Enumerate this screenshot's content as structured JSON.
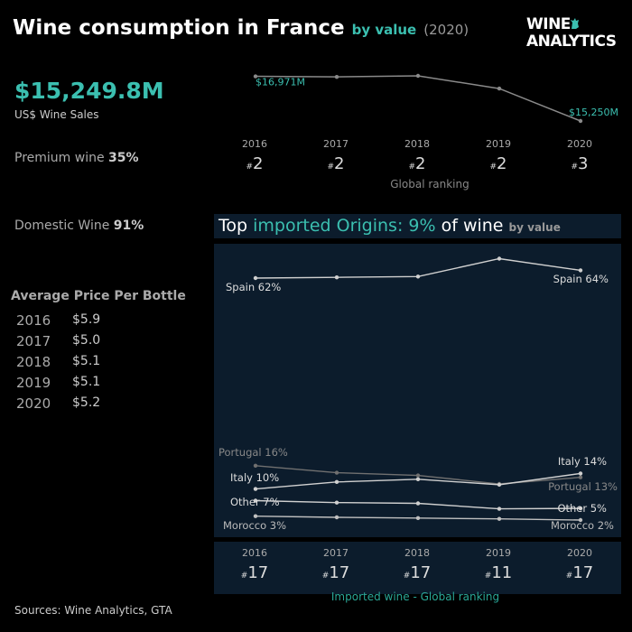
{
  "header": {
    "title": "Wine consumption in France",
    "by_value": "by value",
    "year": "(2020)"
  },
  "logo": {
    "line1": "WINE",
    "line2": "ANALYTICS"
  },
  "sales": {
    "value": "$15,249.8M",
    "label": "US$ Wine Sales"
  },
  "stats": {
    "premium_label": "Premium wine",
    "premium_value": "35%",
    "domestic_label": "Domestic Wine",
    "domestic_value": "91%"
  },
  "avg_price": {
    "title": "Average Price Per Bottle",
    "rows": [
      {
        "year": "2016",
        "price": "$5.9"
      },
      {
        "year": "2017",
        "price": "$5.0"
      },
      {
        "year": "2018",
        "price": "$5.1"
      },
      {
        "year": "2019",
        "price": "$5.1"
      },
      {
        "year": "2020",
        "price": "$5.2"
      }
    ]
  },
  "global_ranking": {
    "caption": "Global ranking",
    "hash": "#",
    "years": [
      "2016",
      "2017",
      "2018",
      "2019",
      "2020"
    ],
    "ranks": [
      "2",
      "2",
      "2",
      "2",
      "3"
    ]
  },
  "imported": {
    "title_pre": "Top",
    "title_hl": "imported Origins: 9%",
    "title_post": "of wine",
    "by_value": "by value",
    "ranking_caption": "Imported wine - Global ranking",
    "years": [
      "2016",
      "2017",
      "2018",
      "2019",
      "2020"
    ],
    "ranks": [
      "17",
      "17",
      "17",
      "11",
      "17"
    ]
  },
  "sources": "Sources: Wine Analytics, GTA",
  "colors": {
    "accent": "#3bbfb0",
    "panel": "#0c1c2c",
    "line": "#9a9a9a"
  },
  "chart_data": [
    {
      "type": "line",
      "title": "",
      "x": [
        2016,
        2017,
        2018,
        2019,
        2020
      ],
      "series": [
        {
          "values": [
            16971,
            16950,
            16990,
            16500,
            15250
          ],
          "point_labels": [
            "$16,971M",
            "",
            "",
            "",
            "$15,250M"
          ]
        }
      ]
    },
    {
      "type": "line",
      "title": "Top imported Origins: 9% of wine by value",
      "x": [
        2016,
        2017,
        2018,
        2019,
        2020
      ],
      "series": [
        {
          "name": "Spain",
          "values": [
            62,
            62.2,
            62.4,
            67,
            64
          ],
          "start_label": "Spain 62%",
          "end_label": "Spain 64%"
        },
        {
          "name": "Portugal",
          "values": [
            16,
            14.2,
            13.5,
            11.3,
            13
          ],
          "start_label": "Portugal 16%",
          "end_label": "Portugal 13%"
        },
        {
          "name": "Italy",
          "values": [
            10,
            11.8,
            12.5,
            11.1,
            14
          ],
          "start_label": "Italy 10%",
          "end_label": "Italy 14%"
        },
        {
          "name": "Other",
          "values": [
            7,
            6.5,
            6.3,
            4.9,
            5
          ],
          "start_label": "Other 7%",
          "end_label": "Other 5%"
        },
        {
          "name": "Morocco",
          "values": [
            3,
            2.7,
            2.5,
            2.3,
            2
          ],
          "start_label": "Morocco 3%",
          "end_label": "Morocco 2%"
        }
      ]
    }
  ]
}
